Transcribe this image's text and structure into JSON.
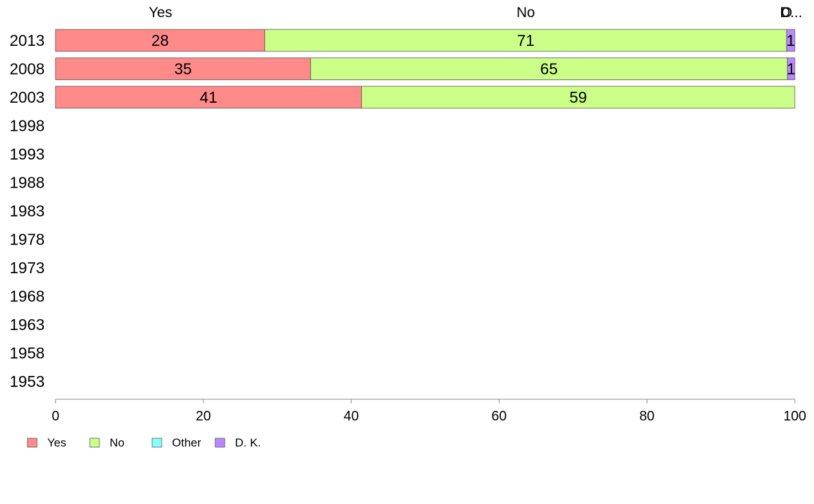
{
  "chart_data": {
    "type": "bar",
    "orientation": "horizontal",
    "stacked": true,
    "categories": [
      "2013",
      "2008",
      "2003",
      "1998",
      "1993",
      "1988",
      "1983",
      "1978",
      "1973",
      "1968",
      "1963",
      "1958",
      "1953"
    ],
    "series": [
      {
        "name": "Yes",
        "color": "#ff8a8a",
        "values": [
          28.3,
          34.5,
          41.4,
          null,
          null,
          null,
          null,
          null,
          null,
          null,
          null,
          null,
          null
        ],
        "labels": [
          "28",
          "35",
          "41",
          "",
          "",
          "",
          "",
          "",
          "",
          "",
          "",
          "",
          ""
        ]
      },
      {
        "name": "No",
        "color": "#ccff88",
        "values": [
          70.6,
          64.5,
          58.6,
          null,
          null,
          null,
          null,
          null,
          null,
          null,
          null,
          null,
          null
        ],
        "labels": [
          "71",
          "65",
          "59",
          "",
          "",
          "",
          "",
          "",
          "",
          "",
          "",
          "",
          ""
        ]
      },
      {
        "name": "Other",
        "color": "#88ffff",
        "values": [
          0,
          0,
          0,
          null,
          null,
          null,
          null,
          null,
          null,
          null,
          null,
          null,
          null
        ],
        "labels": [
          "",
          "",
          "",
          "",
          "",
          "",
          "",
          "",
          "",
          "",
          "",
          "",
          ""
        ]
      },
      {
        "name": "D. K.",
        "color": "#bb88ff",
        "values": [
          1.1,
          1.0,
          0,
          null,
          null,
          null,
          null,
          null,
          null,
          null,
          null,
          null,
          null
        ],
        "labels": [
          "1",
          "1",
          "",
          "",
          "",
          "",
          "",
          "",
          "",
          "",
          "",
          "",
          ""
        ]
      }
    ],
    "top_labels": [
      {
        "text": "Yes",
        "at": 14.2
      },
      {
        "text": "No",
        "at": 63.6
      },
      {
        "text": "O",
        "at": 98.9
      },
      {
        "text": "D...",
        "at": 99.5
      }
    ],
    "xlim": [
      0,
      100
    ],
    "xticks": [
      "0",
      "20",
      "40",
      "60",
      "80",
      "100"
    ],
    "grid": false,
    "legend_position": "bottom-left",
    "xlabel": "",
    "ylabel": ""
  }
}
